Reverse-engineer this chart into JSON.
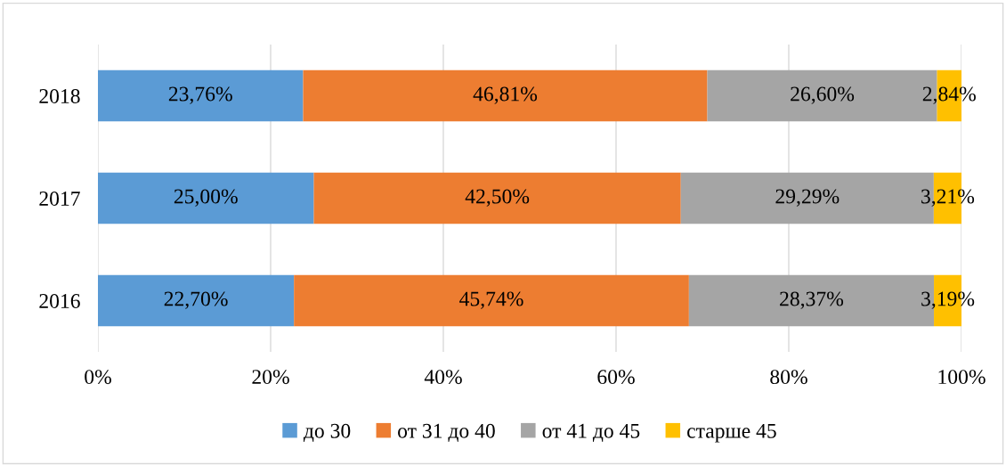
{
  "chart_data": {
    "type": "bar",
    "orientation": "horizontal",
    "stacked": true,
    "categories": [
      "2018",
      "2017",
      "2016"
    ],
    "series": [
      {
        "name": "до 30",
        "color": "#5b9bd5",
        "values": [
          23.76,
          25.0,
          22.7
        ],
        "value_labels": [
          "23,76%",
          "25,00%",
          "22,70%"
        ]
      },
      {
        "name": "от 31 до 40",
        "color": "#ed7d31",
        "values": [
          46.81,
          42.5,
          45.74
        ],
        "value_labels": [
          "46,81%",
          "42,50%",
          "45,74%"
        ]
      },
      {
        "name": "от 41 до 45",
        "color": "#a5a5a5",
        "values": [
          26.6,
          29.29,
          28.37
        ],
        "value_labels": [
          "26,60%",
          "29,29%",
          "28,37%"
        ]
      },
      {
        "name": "старше 45",
        "color": "#ffc000",
        "values": [
          2.84,
          3.21,
          3.19
        ],
        "value_labels": [
          "2,84%",
          "3,21%",
          "3,19%"
        ]
      }
    ],
    "xlim": [
      0,
      100
    ],
    "xticks": [
      {
        "value": 0,
        "label": "0%"
      },
      {
        "value": 20,
        "label": "20%"
      },
      {
        "value": 40,
        "label": "40%"
      },
      {
        "value": 60,
        "label": "60%"
      },
      {
        "value": 80,
        "label": "80%"
      },
      {
        "value": 100,
        "label": "100%"
      }
    ],
    "grid": "x",
    "legend": "bottom"
  }
}
